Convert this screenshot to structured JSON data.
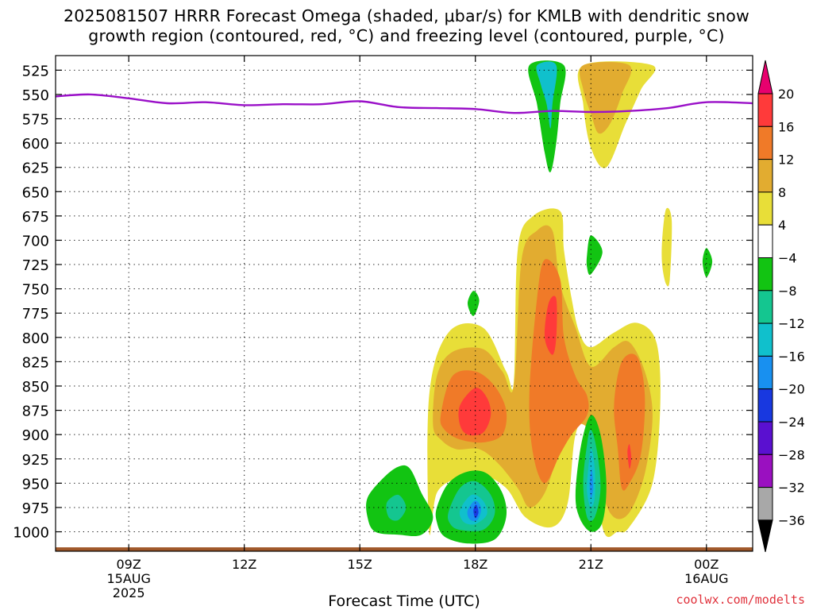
{
  "title": {
    "line1": "2025081507 HRRR Forecast Omega (shaded, μbar/s) for KMLB with dendritic snow",
    "line2": "growth region (contoured, red, °C) and freezing level (contoured, purple, °C)"
  },
  "credit": "coolwx.com/modelts",
  "chart_data": {
    "type": "heatmap",
    "title": "2025081507 HRRR Forecast Omega (shaded, μbar/s) for KMLB with dendritic snow growth region (contoured, red, °C) and freezing level (contoured, purple, °C)",
    "xlabel": "Forecast Time (UTC)",
    "ylabel": "",
    "x_range_hours_since_0600Z_15AUG": [
      1.1,
      19.2
    ],
    "y_range_mb": [
      1020,
      510
    ],
    "y_ticks": [
      "525",
      "550",
      "575",
      "600",
      "625",
      "650",
      "675",
      "700",
      "725",
      "750",
      "775",
      "800",
      "825",
      "850",
      "875",
      "900",
      "925",
      "950",
      "975",
      "1000"
    ],
    "x_ticks": [
      {
        "h": 3,
        "lines": [
          "09Z",
          "15AUG",
          "2025"
        ]
      },
      {
        "h": 6,
        "lines": [
          "12Z"
        ]
      },
      {
        "h": 9,
        "lines": [
          "15Z"
        ]
      },
      {
        "h": 12,
        "lines": [
          "18Z"
        ]
      },
      {
        "h": 15,
        "lines": [
          "21Z"
        ]
      },
      {
        "h": 18,
        "lines": [
          "00Z",
          "16AUG"
        ]
      }
    ],
    "colorbar": {
      "labels": [
        "20",
        "16",
        "12",
        "8",
        "4",
        "−4",
        "−8",
        "−12",
        "−16",
        "−20",
        "−24",
        "−28",
        "−32",
        "−36"
      ],
      "colors": [
        "#e8006e",
        "#ff3a3a",
        "#f07a28",
        "#e2ac30",
        "#e8de38",
        "#ffffff",
        "#12c412",
        "#14c690",
        "#10c0cc",
        "#1890f0",
        "#1838e0",
        "#5a10d0",
        "#9a10c0",
        "#a8a8a8",
        "#000000"
      ]
    },
    "freezing_level": {
      "color": "#9a10c8",
      "hours": [
        1.1,
        2.0,
        3.0,
        4.0,
        5.0,
        6.0,
        7.0,
        8.0,
        9.0,
        10.0,
        11.0,
        12.0,
        13.0,
        14.0,
        15.0,
        16.0,
        17.0,
        18.0,
        19.2
      ],
      "mb": [
        552,
        550,
        554,
        559,
        558,
        561,
        560,
        560,
        557,
        563,
        564,
        565,
        569,
        567,
        568,
        567,
        564,
        558,
        559
      ]
    },
    "surface": {
      "color": "#a0582a",
      "mb": 1016
    },
    "omega_regions": [
      {
        "name": "lower-positive-area",
        "level": 4,
        "color": "#e8de38",
        "pts": [
          [
            10.8,
            1000
          ],
          [
            10.8,
            860
          ],
          [
            11.3,
            795
          ],
          [
            12.2,
            790
          ],
          [
            12.8,
            835
          ],
          [
            13.0,
            845
          ],
          [
            13.1,
            710
          ],
          [
            13.5,
            675
          ],
          [
            14.2,
            670
          ],
          [
            14.3,
            710
          ],
          [
            14.5,
            760
          ],
          [
            14.7,
            795
          ],
          [
            15.0,
            810
          ],
          [
            15.6,
            795
          ],
          [
            16.2,
            785
          ],
          [
            16.7,
            805
          ],
          [
            16.8,
            870
          ],
          [
            16.6,
            950
          ],
          [
            16.0,
            995
          ],
          [
            15.7,
            1000
          ],
          [
            15.3,
            995
          ],
          [
            15.0,
            880
          ],
          [
            14.6,
            900
          ],
          [
            14.4,
            970
          ],
          [
            14.0,
            995
          ],
          [
            13.3,
            985
          ],
          [
            12.8,
            955
          ],
          [
            12.1,
            940
          ],
          [
            11.5,
            945
          ],
          [
            11.0,
            960
          ]
        ]
      },
      {
        "name": "upper-positive-area",
        "level": 4,
        "color": "#e8de38",
        "pts": [
          [
            14.8,
            520
          ],
          [
            16.6,
            520
          ],
          [
            16.3,
            545
          ],
          [
            15.9,
            580
          ],
          [
            15.4,
            625
          ],
          [
            15.0,
            605
          ],
          [
            14.8,
            560
          ]
        ]
      },
      {
        "name": "upper-positive-core",
        "level": 8,
        "color": "#e2ac30",
        "pts": [
          [
            14.8,
            520
          ],
          [
            16.0,
            520
          ],
          [
            15.8,
            550
          ],
          [
            15.5,
            580
          ],
          [
            15.2,
            590
          ],
          [
            15.0,
            570
          ],
          [
            14.8,
            545
          ]
        ]
      },
      {
        "name": "lower-positive-core-8",
        "level": 8,
        "color": "#e2ac30",
        "pts": [
          [
            10.9,
            890
          ],
          [
            11.0,
            840
          ],
          [
            11.4,
            815
          ],
          [
            12.2,
            812
          ],
          [
            12.7,
            835
          ],
          [
            13.0,
            850
          ],
          [
            13.2,
            720
          ],
          [
            13.6,
            690
          ],
          [
            14.0,
            690
          ],
          [
            14.2,
            745
          ],
          [
            14.6,
            790
          ],
          [
            15.0,
            830
          ],
          [
            15.6,
            810
          ],
          [
            16.0,
            805
          ],
          [
            16.4,
            835
          ],
          [
            16.6,
            880
          ],
          [
            16.4,
            940
          ],
          [
            16.0,
            980
          ],
          [
            15.6,
            985
          ],
          [
            15.3,
            960
          ],
          [
            15.0,
            900
          ],
          [
            14.6,
            890
          ],
          [
            14.2,
            915
          ],
          [
            13.8,
            960
          ],
          [
            13.4,
            975
          ],
          [
            13.1,
            955
          ],
          [
            12.6,
            930
          ],
          [
            12.1,
            915
          ],
          [
            11.5,
            915
          ],
          [
            11.1,
            905
          ]
        ]
      },
      {
        "name": "lower-positive-core-12-left",
        "level": 12,
        "color": "#f07a28",
        "pts": [
          [
            11.1,
            880
          ],
          [
            11.4,
            840
          ],
          [
            12.0,
            835
          ],
          [
            12.5,
            850
          ],
          [
            12.8,
            875
          ],
          [
            12.7,
            900
          ],
          [
            12.2,
            908
          ],
          [
            11.6,
            905
          ],
          [
            11.2,
            895
          ]
        ]
      },
      {
        "name": "lower-positive-core-12-center",
        "level": 12,
        "color": "#f07a28",
        "pts": [
          [
            13.5,
            920
          ],
          [
            13.4,
            860
          ],
          [
            13.6,
            760
          ],
          [
            13.8,
            720
          ],
          [
            14.2,
            740
          ],
          [
            14.3,
            800
          ],
          [
            14.6,
            840
          ],
          [
            14.9,
            860
          ],
          [
            14.9,
            880
          ],
          [
            14.5,
            900
          ],
          [
            14.2,
            920
          ],
          [
            13.8,
            950
          ]
        ]
      },
      {
        "name": "lower-positive-core-12-right",
        "level": 12,
        "color": "#f07a28",
        "pts": [
          [
            15.6,
            870
          ],
          [
            15.8,
            825
          ],
          [
            16.2,
            820
          ],
          [
            16.4,
            860
          ],
          [
            16.3,
            920
          ],
          [
            16.0,
            950
          ],
          [
            15.8,
            955
          ],
          [
            15.7,
            915
          ]
        ]
      },
      {
        "name": "lower-max-16-left",
        "level": 16,
        "color": "#ff3a3a",
        "pts": [
          [
            11.6,
            870
          ],
          [
            12.0,
            852
          ],
          [
            12.3,
            862
          ],
          [
            12.4,
            880
          ],
          [
            12.2,
            898
          ],
          [
            11.8,
            900
          ],
          [
            11.6,
            890
          ]
        ]
      },
      {
        "name": "lower-max-16-center",
        "level": 16,
        "color": "#ff3a3a",
        "pts": [
          [
            13.8,
            800
          ],
          [
            13.9,
            765
          ],
          [
            14.1,
            760
          ],
          [
            14.1,
            800
          ],
          [
            14.0,
            818
          ]
        ]
      },
      {
        "name": "lower-max-16-right",
        "level": 16,
        "color": "#ff3a3a",
        "pts": [
          [
            15.95,
            918
          ],
          [
            16.0,
            910
          ],
          [
            16.05,
            925
          ],
          [
            16.0,
            935
          ]
        ]
      },
      {
        "name": "upper-negative-area",
        "level": -8,
        "color": "#12c412",
        "pts": [
          [
            13.4,
            520
          ],
          [
            14.3,
            520
          ],
          [
            14.2,
            560
          ],
          [
            14.1,
            600
          ],
          [
            13.95,
            630
          ],
          [
            13.8,
            610
          ],
          [
            13.6,
            560
          ]
        ]
      },
      {
        "name": "upper-negative-core",
        "level": -12,
        "color": "#10c0cc",
        "pts": [
          [
            13.6,
            520
          ],
          [
            14.1,
            520
          ],
          [
            14.0,
            560
          ],
          [
            13.95,
            585
          ],
          [
            13.85,
            560
          ],
          [
            13.7,
            540
          ]
        ]
      },
      {
        "name": "lower-negative-area-left",
        "level": -8,
        "color": "#12c412",
        "pts": [
          [
            9.2,
            965
          ],
          [
            9.6,
            945
          ],
          [
            10.0,
            933
          ],
          [
            10.3,
            935
          ],
          [
            10.6,
            960
          ],
          [
            10.9,
            985
          ],
          [
            10.6,
            1003
          ],
          [
            10.0,
            1003
          ],
          [
            9.4,
            1000
          ],
          [
            9.2,
            985
          ]
        ]
      },
      {
        "name": "lower-negative-core-left",
        "level": -12,
        "color": "#14c690",
        "pts": [
          [
            9.7,
            970
          ],
          [
            10.0,
            962
          ],
          [
            10.2,
            975
          ],
          [
            10.0,
            988
          ],
          [
            9.75,
            985
          ]
        ]
      },
      {
        "name": "lower-negative-area-mid",
        "level": -8,
        "color": "#12c412",
        "pts": [
          [
            11.0,
            975
          ],
          [
            11.3,
            950
          ],
          [
            11.8,
            938
          ],
          [
            12.3,
            940
          ],
          [
            12.7,
            960
          ],
          [
            12.8,
            985
          ],
          [
            12.5,
            1008
          ],
          [
            11.8,
            1012
          ],
          [
            11.2,
            1005
          ],
          [
            11.0,
            990
          ]
        ]
      },
      {
        "name": "lower-negative-core-mid-12",
        "level": -12,
        "color": "#14c690",
        "pts": [
          [
            11.3,
            980
          ],
          [
            11.6,
            955
          ],
          [
            12.0,
            948
          ],
          [
            12.4,
            962
          ],
          [
            12.5,
            982
          ],
          [
            12.2,
            998
          ],
          [
            11.6,
            998
          ],
          [
            11.35,
            992
          ]
        ]
      },
      {
        "name": "lower-negative-core-mid-16",
        "level": -16,
        "color": "#10c0cc",
        "pts": [
          [
            11.6,
            978
          ],
          [
            11.9,
            962
          ],
          [
            12.2,
            968
          ],
          [
            12.3,
            982
          ],
          [
            12.0,
            992
          ],
          [
            11.7,
            990
          ]
        ]
      },
      {
        "name": "lower-negative-core-mid-20",
        "level": -20,
        "color": "#1890f0",
        "pts": [
          [
            11.8,
            978
          ],
          [
            12.0,
            968
          ],
          [
            12.15,
            976
          ],
          [
            12.05,
            988
          ],
          [
            11.85,
            987
          ]
        ]
      },
      {
        "name": "lower-negative-core-mid-24",
        "level": -24,
        "color": "#1838e0",
        "pts": [
          [
            11.95,
            978
          ],
          [
            12.02,
            972
          ],
          [
            12.08,
            980
          ],
          [
            12.0,
            986
          ]
        ]
      },
      {
        "name": "lower-negative-area-right",
        "level": -8,
        "color": "#12c412",
        "pts": [
          [
            14.6,
            960
          ],
          [
            14.75,
            910
          ],
          [
            15.0,
            880
          ],
          [
            15.25,
            900
          ],
          [
            15.4,
            950
          ],
          [
            15.3,
            990
          ],
          [
            15.0,
            1000
          ],
          [
            14.7,
            985
          ]
        ]
      },
      {
        "name": "lower-negative-core-right-12",
        "level": -12,
        "color": "#14c690",
        "pts": [
          [
            14.8,
            950
          ],
          [
            14.9,
            910
          ],
          [
            15.0,
            895
          ],
          [
            15.15,
            915
          ],
          [
            15.25,
            955
          ],
          [
            15.1,
            985
          ],
          [
            14.9,
            985
          ]
        ]
      },
      {
        "name": "lower-negative-core-right-16",
        "level": -16,
        "color": "#10c0cc",
        "pts": [
          [
            14.9,
            950
          ],
          [
            15.0,
            915
          ],
          [
            15.1,
            935
          ],
          [
            15.1,
            965
          ],
          [
            15.0,
            975
          ],
          [
            14.92,
            965
          ]
        ]
      },
      {
        "name": "lower-negative-core-right-20",
        "level": -20,
        "color": "#1890f0",
        "pts": [
          [
            14.97,
            950
          ],
          [
            15.02,
            935
          ],
          [
            15.06,
            955
          ],
          [
            15.0,
            965
          ]
        ]
      },
      {
        "name": "mid-negative-blob-1",
        "level": -8,
        "color": "#12c412",
        "pts": [
          [
            11.8,
            765
          ],
          [
            11.95,
            752
          ],
          [
            12.1,
            762
          ],
          [
            11.95,
            778
          ]
        ]
      },
      {
        "name": "mid-negative-blob-2",
        "level": -8,
        "color": "#12c412",
        "pts": [
          [
            14.9,
            715
          ],
          [
            15.0,
            695
          ],
          [
            15.3,
            712
          ],
          [
            15.0,
            735
          ],
          [
            14.9,
            728
          ]
        ]
      },
      {
        "name": "mid-negative-blob-3",
        "level": -8,
        "color": "#12c412",
        "pts": [
          [
            17.9,
            722
          ],
          [
            18.0,
            708
          ],
          [
            18.15,
            722
          ],
          [
            18.0,
            738
          ]
        ]
      },
      {
        "name": "mid-positive-sliver",
        "level": 4,
        "color": "#e8de38",
        "pts": [
          [
            16.85,
            700
          ],
          [
            16.95,
            668
          ],
          [
            17.1,
            680
          ],
          [
            17.05,
            740
          ],
          [
            16.95,
            745
          ],
          [
            16.85,
            725
          ]
        ]
      }
    ]
  }
}
